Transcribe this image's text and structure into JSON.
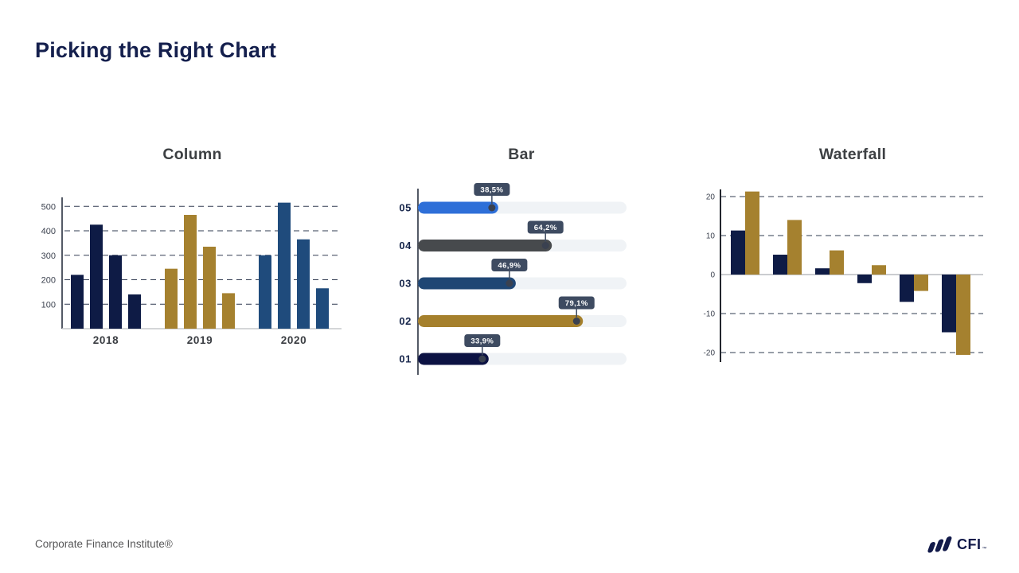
{
  "page": {
    "title": "Picking the Right Chart",
    "footer": "Corporate Finance Institute®",
    "logo": {
      "text": "CFI",
      "mark": "™"
    }
  },
  "colors": {
    "title": "#141f4d",
    "heading": "#3d4043",
    "grid_dash": "#323c52",
    "axis": "#1c2433",
    "baseline": "#c6c8cb",
    "zero_line": "#b9bcc0",
    "tick_text": "#3d4350",
    "bar_track": "#f0f3f6",
    "tooltip_bg": "#3e4b61",
    "tooltip_text": "#ffffff",
    "dot": "#3a4150",
    "footer_text": "#565657",
    "logo_navy": "#121a4a",
    "navy": "#0e1b45",
    "gold": "#a5812f",
    "steel_blue": "#1f4b7c",
    "bright_blue": "#2e6fd8",
    "dark_gray": "#474a4d",
    "deep_navy": "#0c1243"
  },
  "chart_data": [
    {
      "type": "bar",
      "variant": "grouped-column",
      "title": "Column",
      "xlabel": "",
      "ylabel": "",
      "yticks": [
        100,
        200,
        300,
        400,
        500
      ],
      "ylim": [
        0,
        540
      ],
      "grid": "dashed-horizontal",
      "legend": "none",
      "groups": [
        {
          "label": "2018",
          "color": "#0e1b45",
          "values": [
            220,
            425,
            300,
            140
          ]
        },
        {
          "label": "2019",
          "color": "#a5812f",
          "values": [
            245,
            465,
            335,
            145
          ]
        },
        {
          "label": "2020",
          "color": "#1f4b7c",
          "values": [
            300,
            515,
            365,
            165
          ]
        }
      ]
    },
    {
      "type": "bar",
      "variant": "horizontal-progress",
      "title": "Bar",
      "xlabel": "",
      "ylabel": "",
      "categories": [
        "05",
        "04",
        "03",
        "02",
        "01"
      ],
      "values": [
        38.5,
        64.2,
        46.9,
        79.1,
        33.9
      ],
      "value_labels": [
        "38,5%",
        "64,2%",
        "46,9%",
        "79,1%",
        "33,9%"
      ],
      "bar_colors": [
        "#2e6fd8",
        "#474a4d",
        "#1f4674",
        "#a5802c",
        "#0c1243"
      ],
      "xlim": [
        0,
        100
      ],
      "grid": "off",
      "legend": "none"
    },
    {
      "type": "bar",
      "variant": "waterfall-paired-columns",
      "title": "Waterfall",
      "xlabel": "",
      "ylabel": "",
      "yticks": [
        20,
        10,
        0,
        -10,
        -20
      ],
      "ylim": [
        -22,
        22
      ],
      "grid": "dashed-horizontal",
      "legend": "none",
      "series": [
        {
          "name": "navy",
          "color": "#0e1b45",
          "values": [
            11.3,
            5.1,
            1.6,
            -2.2,
            -7.0,
            -14.8
          ]
        },
        {
          "name": "gold",
          "color": "#a5812f",
          "values": [
            21.3,
            14.0,
            6.2,
            2.4,
            -4.2,
            -20.6
          ]
        }
      ]
    }
  ]
}
